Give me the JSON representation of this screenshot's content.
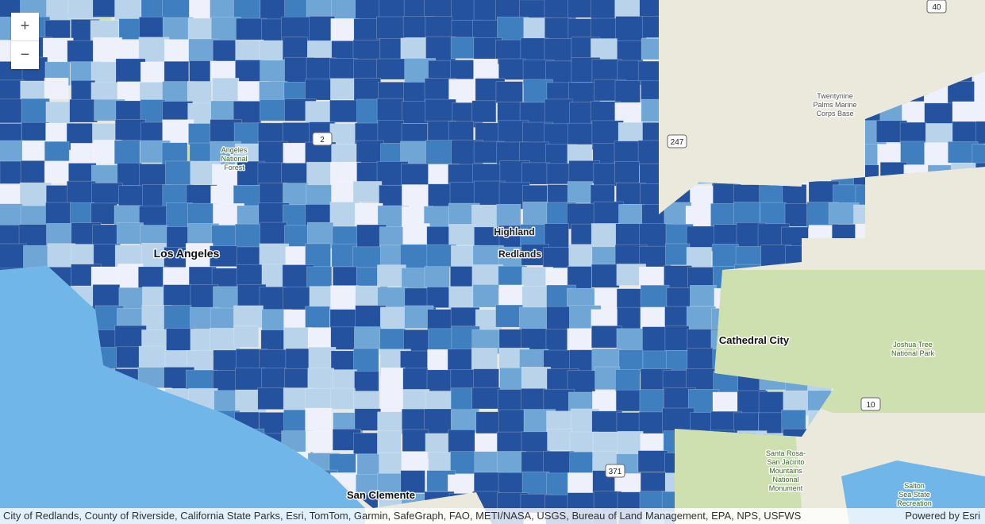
{
  "zoom_controls": {
    "zoom_in": "+",
    "zoom_out": "−"
  },
  "labels": [
    {
      "lines": [
        "Twentynine",
        "Palms Marine",
        "Corps Base"
      ]
    },
    {
      "lines": [
        "Angeles",
        "National",
        "Forest"
      ]
    },
    {
      "lines": [
        "Los Angeles"
      ]
    },
    {
      "lines": [
        "Highland"
      ]
    },
    {
      "lines": [
        "Redlands"
      ]
    },
    {
      "lines": [
        "Cathedral City"
      ]
    },
    {
      "lines": [
        "Joshua Tree",
        "National Park"
      ]
    },
    {
      "lines": [
        "Santa Rosa-",
        "San Jacinto",
        "Mountains",
        "National",
        "Monument"
      ]
    },
    {
      "lines": [
        "Salton",
        "Sea State",
        "Recreation"
      ]
    },
    {
      "lines": [
        "San Clemente"
      ]
    }
  ],
  "shields": [
    "40",
    "2",
    "247",
    "10",
    "371"
  ],
  "attribution": "City of Redlands, County of Riverside, California State Parks, Esri, TomTom, Garmin, SafeGraph, FAO, METI/NASA, USGS, Bureau of Land Management, EPA, NPS, USFWS",
  "powered_by": "Powered by Esri"
}
